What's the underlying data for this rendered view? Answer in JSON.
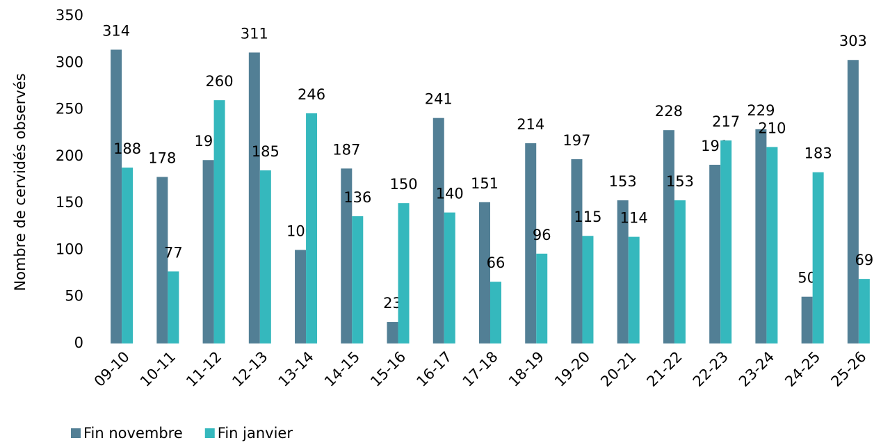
{
  "chart_data": {
    "type": "bar",
    "y_axis_label": "Nombre de cervidés observés",
    "categories": [
      "09-10",
      "10-11",
      "11-12",
      "12-13",
      "13-14",
      "14-15",
      "15-16",
      "16-17",
      "17-18",
      "18-19",
      "19-20",
      "20-21",
      "21-22",
      "22-23",
      "23-24",
      "24-25",
      "25-26"
    ],
    "series": [
      {
        "name": "Fin novembre",
        "color": "#527f95",
        "values": [
          314,
          178,
          196,
          311,
          100,
          187,
          23,
          241,
          151,
          214,
          197,
          153,
          228,
          191,
          229,
          50,
          303
        ]
      },
      {
        "name": "Fin janvier",
        "color": "#35b8bd",
        "values": [
          188,
          77,
          260,
          185,
          246,
          136,
          150,
          140,
          66,
          96,
          115,
          114,
          153,
          217,
          210,
          183,
          69
        ]
      }
    ],
    "ylim": [
      0,
      350
    ],
    "yticks": [
      0,
      50,
      100,
      150,
      200,
      250,
      300,
      350
    ],
    "grid": false,
    "legend": "bottom-left"
  }
}
